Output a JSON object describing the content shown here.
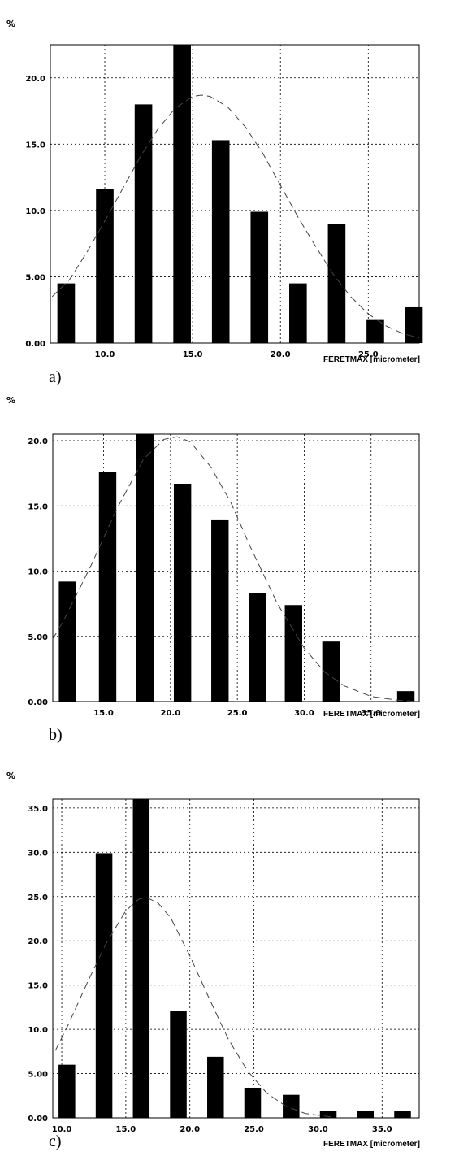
{
  "chart_data": [
    {
      "panel_label": "a)",
      "type": "bar",
      "y_unit_label": "%",
      "xlabel": "FERETMAX [micrometer]",
      "xlim": [
        6.9,
        27.9
      ],
      "ylim": [
        0,
        22.5
      ],
      "xticks": [
        10.0,
        15.0,
        20.0,
        25.0
      ],
      "xtick_labels": [
        "10.0",
        "15.0",
        "20.0",
        "25.0"
      ],
      "yticks": [
        0,
        5,
        10,
        15,
        20
      ],
      "ytick_labels": [
        "0.00",
        "5.00",
        "10.0",
        "15.0",
        "20.0"
      ],
      "bar_width": 1.0,
      "series": [
        {
          "type": "bar",
          "x": [
            7.8,
            10.0,
            12.2,
            14.4,
            16.6,
            18.8,
            21.0,
            23.2,
            25.4,
            27.6
          ],
          "values": [
            4.5,
            11.6,
            18.0,
            22.5,
            15.3,
            9.9,
            4.5,
            9.0,
            1.8,
            2.7
          ]
        },
        {
          "type": "line",
          "style": "dashed",
          "x": [
            7.0,
            8.0,
            9.0,
            10.0,
            11.0,
            12.0,
            13.0,
            14.0,
            15.0,
            15.5,
            16.0,
            17.0,
            18.0,
            19.0,
            20.0,
            21.0,
            22.0,
            23.0,
            24.0,
            25.0,
            26.0,
            27.0,
            27.9
          ],
          "values": [
            3.5,
            4.8,
            6.9,
            9.2,
            11.6,
            14.0,
            16.1,
            17.7,
            18.6,
            18.7,
            18.6,
            17.8,
            16.3,
            14.3,
            11.9,
            9.5,
            7.3,
            5.2,
            3.5,
            2.2,
            1.3,
            0.7,
            0.4
          ]
        }
      ],
      "grid": true
    },
    {
      "panel_label": "b)",
      "type": "bar",
      "y_unit_label": "%",
      "xlabel": "FERETMAX [micrometer]",
      "xlim": [
        11.2,
        38.6
      ],
      "ylim": [
        0,
        20.5
      ],
      "xticks": [
        15.0,
        20.0,
        25.0,
        30.0,
        35.0
      ],
      "xtick_labels": [
        "15.0",
        "20.0",
        "25.0",
        "30.0",
        "35.0"
      ],
      "yticks": [
        0,
        5,
        10,
        15,
        20
      ],
      "ytick_labels": [
        "0.00",
        "5.00",
        "10.0",
        "15.0",
        "20.0"
      ],
      "bar_width": 1.3,
      "series": [
        {
          "type": "bar",
          "x": [
            12.3,
            15.3,
            18.1,
            20.9,
            23.7,
            26.5,
            29.2,
            32.0,
            37.6
          ],
          "values": [
            9.2,
            17.6,
            20.5,
            16.7,
            13.9,
            8.3,
            7.4,
            4.6,
            0.8
          ]
        },
        {
          "type": "line",
          "style": "dashed",
          "x": [
            11.2,
            12.0,
            14.0,
            16.0,
            18.0,
            19.5,
            20.5,
            21.5,
            23.0,
            24.5,
            26.0,
            28.0,
            30.0,
            31.5,
            33.0,
            35.0,
            37.0,
            38.6
          ],
          "values": [
            4.8,
            6.2,
            10.3,
            14.8,
            18.6,
            20.1,
            20.3,
            19.9,
            18.0,
            15.3,
            11.8,
            7.5,
            4.1,
            2.3,
            1.2,
            0.4,
            0.1,
            0.0
          ]
        }
      ],
      "grid": true
    },
    {
      "panel_label": "c)",
      "type": "bar",
      "y_unit_label": "%",
      "xlabel": "FERETMAX [micrometer]",
      "xlim": [
        9.3,
        37.9
      ],
      "ylim": [
        0,
        36
      ],
      "xticks": [
        10.0,
        15.0,
        20.0,
        25.0,
        30.0,
        35.0
      ],
      "xtick_labels": [
        "10.0",
        "15.0",
        "20.0",
        "25.0",
        "30.0",
        "35.0"
      ],
      "yticks": [
        0,
        5,
        10,
        15,
        20,
        25,
        30,
        35
      ],
      "ytick_labels": [
        "0.00",
        "5.00",
        "10.0",
        "15.0",
        "20.0",
        "25.0",
        "30.0",
        "35.0"
      ],
      "bar_width": 1.3,
      "series": [
        {
          "type": "bar",
          "x": [
            10.4,
            13.3,
            16.2,
            19.1,
            22.0,
            24.9,
            27.9,
            30.8,
            33.7,
            36.6
          ],
          "values": [
            6.0,
            29.9,
            36.0,
            12.1,
            6.9,
            3.4,
            2.6,
            0.8,
            0.8,
            0.8
          ]
        },
        {
          "type": "line",
          "style": "dashed",
          "x": [
            9.5,
            10.5,
            12.0,
            13.5,
            15.0,
            16.0,
            16.6,
            17.5,
            18.5,
            20.0,
            21.5,
            23.0,
            24.5,
            26.0,
            27.5,
            29.0,
            30.0,
            31.0
          ],
          "values": [
            7.6,
            10.5,
            15.3,
            19.8,
            23.4,
            24.7,
            24.9,
            24.3,
            22.6,
            18.3,
            13.5,
            8.9,
            5.3,
            2.8,
            1.3,
            0.5,
            0.3,
            0.1
          ]
        }
      ],
      "grid": true
    }
  ]
}
